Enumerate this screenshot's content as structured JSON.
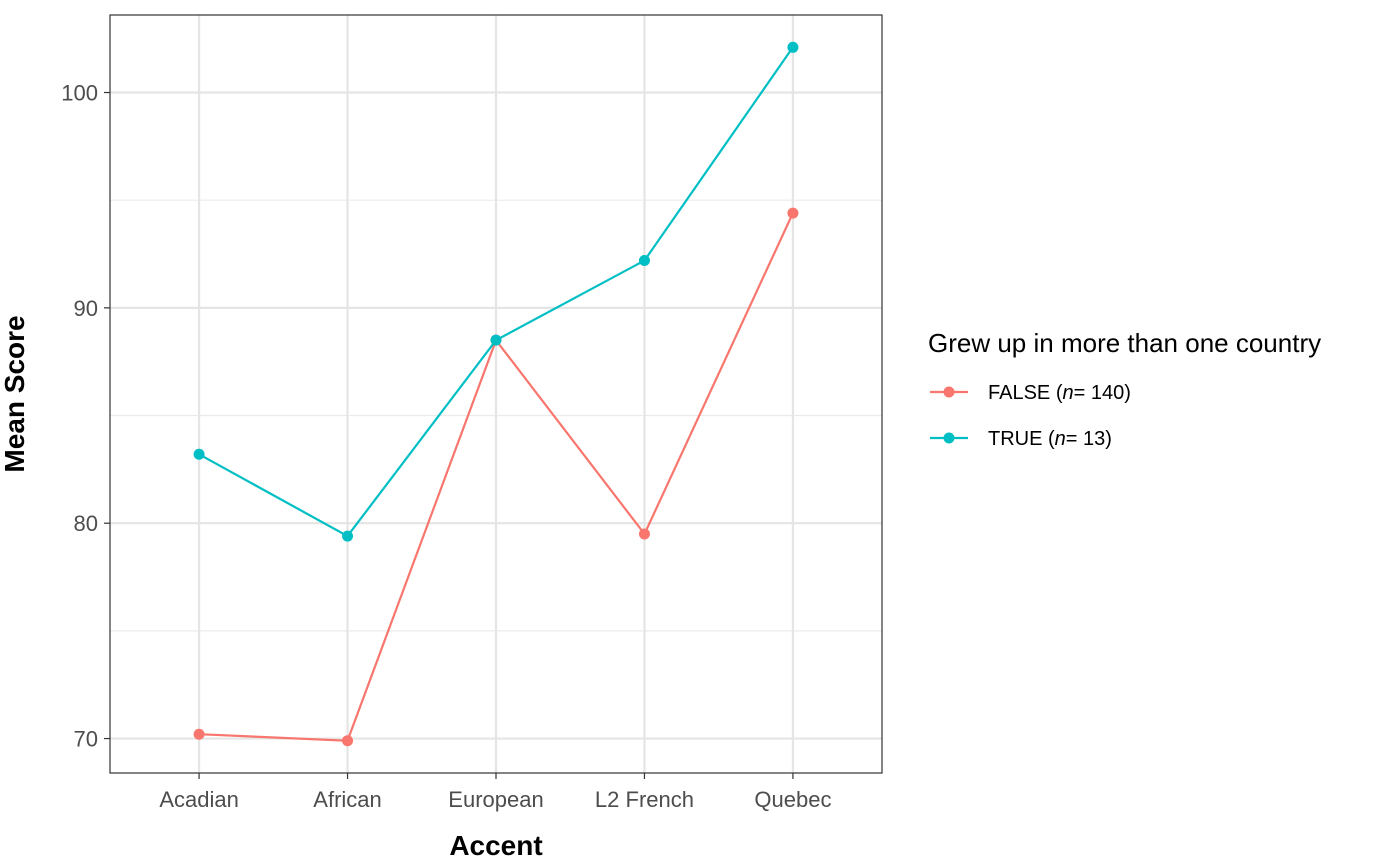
{
  "chart_data": {
    "type": "line",
    "categories": [
      "Acadian",
      "African",
      "European",
      "L2 French",
      "Quebec"
    ],
    "ylim": [
      68.4,
      103.6
    ],
    "yticks": [
      70,
      80,
      90,
      100
    ],
    "xlabel": "Accent",
    "ylabel": "Mean Score",
    "grid": true,
    "legend": {
      "title": "Grew up in more than one country",
      "placement": "right"
    },
    "series": [
      {
        "name": "FALSE",
        "n_label": "n",
        "n_text": "= 140)",
        "label_prefix": "FALSE (",
        "color": "#F8766D",
        "values": [
          70.2,
          69.9,
          88.5,
          79.5,
          94.4
        ]
      },
      {
        "name": "TRUE",
        "n_label": "n",
        "n_text": "= 13)",
        "label_prefix": "TRUE (",
        "color": "#00BFC4",
        "values": [
          83.2,
          79.4,
          88.5,
          92.2,
          102.1
        ]
      }
    ]
  }
}
